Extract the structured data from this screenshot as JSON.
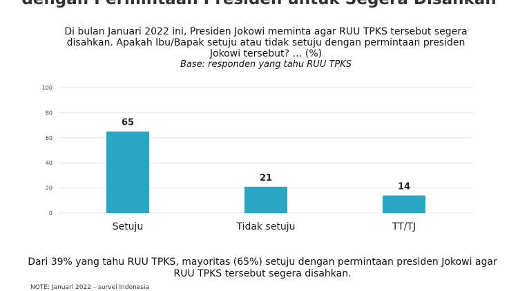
{
  "title": "dengan Permintaan Presiden untuk Segera Disahkan",
  "question": "Di bulan Januari 2022 ini, Presiden Jokowi meminta agar RUU TPKS tersebut segera disahkan. Apakah Ibu/Bapak setuju atau tidak setuju dengan permintaan presiden Jokowi tersebut? … (%)",
  "base": "Base: responden yang tahu RUU TPKS",
  "footer": "Dari 39% yang tahu RUU TPKS, mayoritas (65%) setuju dengan permintaan presiden Jokowi agar RUU TPKS tersebut segera disahkan.",
  "note": "NOTE: Januari 2022 – survei Indonesia",
  "colors": {
    "bar": "#2aa6c4",
    "grid": "#e3e3e3"
  },
  "chart_data": {
    "type": "bar",
    "categories": [
      "Setuju",
      "Tidak setuju",
      "TT/TJ"
    ],
    "values": [
      65,
      21,
      14
    ],
    "yticks": [
      0,
      20,
      40,
      60,
      80,
      100
    ],
    "ylim": [
      0,
      100
    ],
    "grid": true,
    "xlabel": "",
    "ylabel": ""
  }
}
